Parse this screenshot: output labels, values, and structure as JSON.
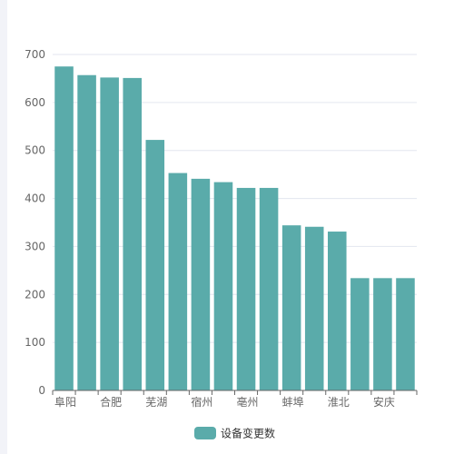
{
  "chart_data": {
    "type": "bar",
    "categories": [
      "阜阳",
      "",
      "合肥",
      "",
      "芜湖",
      "",
      "宿州",
      "",
      "亳州",
      "",
      "蚌埠",
      "",
      "淮北",
      "",
      "安庆",
      ""
    ],
    "series": [
      {
        "name": "设备变更数",
        "values": [
          675,
          657,
          652,
          651,
          522,
          453,
          441,
          434,
          422,
          422,
          344,
          341,
          331,
          234,
          234,
          234
        ]
      }
    ],
    "ylim": [
      0,
      700
    ],
    "yticks": [
      0,
      100,
      200,
      300,
      400,
      500,
      600,
      700
    ],
    "grid": true,
    "legend_position": "bottom-center",
    "colors": {
      "bar": "#5aabaa",
      "grid": "#e3e6ef",
      "axis": "#666666",
      "label": "#666666"
    }
  }
}
